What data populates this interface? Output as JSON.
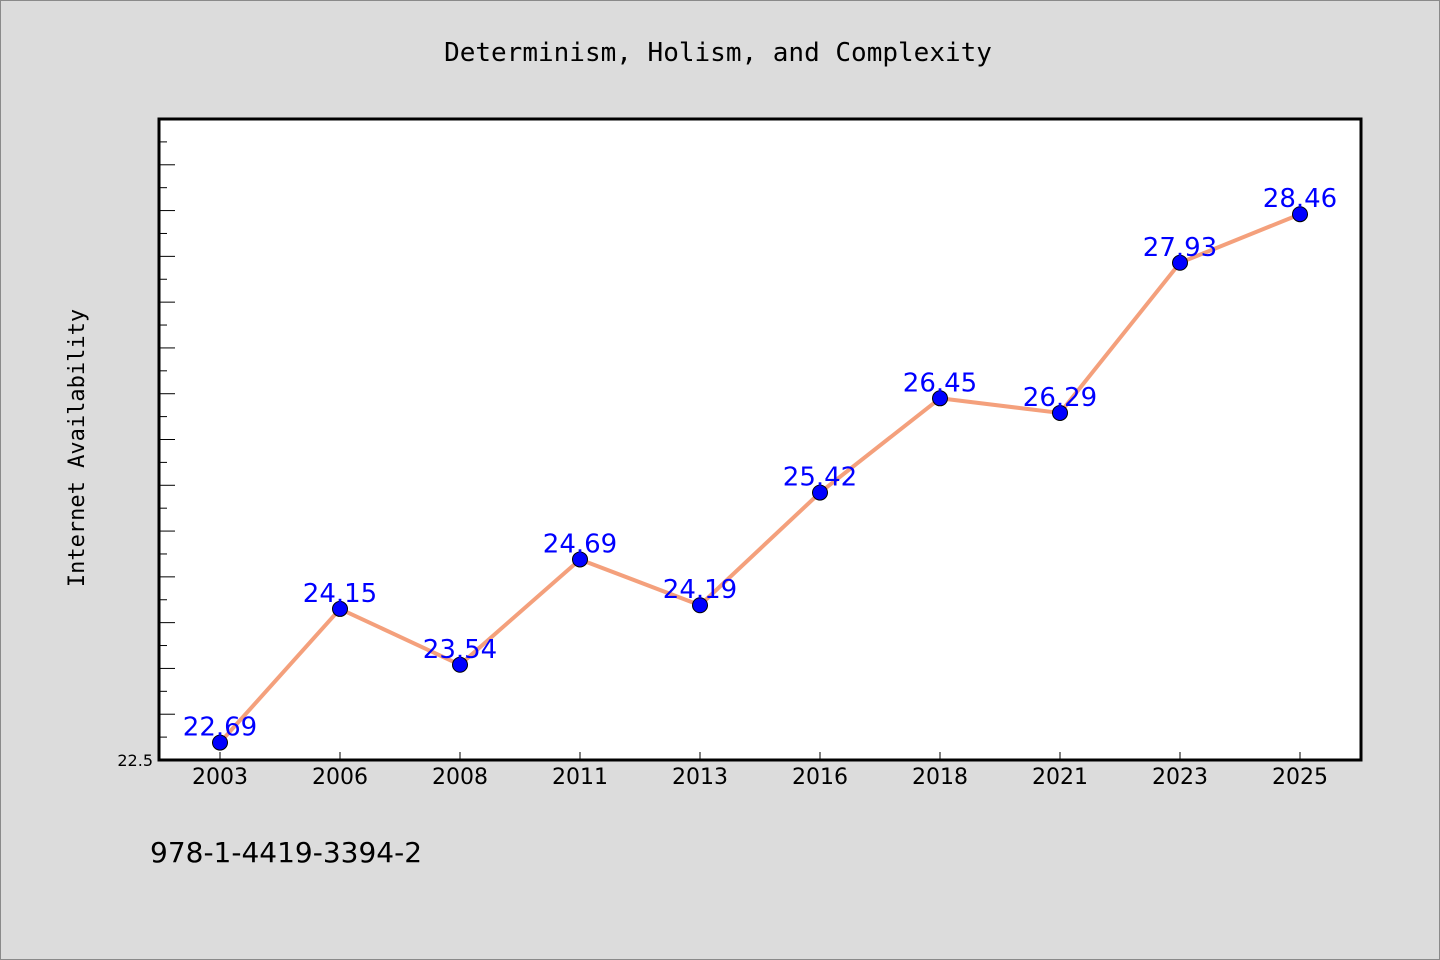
{
  "isbn_text": "978-1-4419-3394-2",
  "chart_data": {
    "type": "line",
    "title": "Determinism, Holism, and Complexity",
    "xlabel": "",
    "ylabel": "Internet Availability",
    "categories": [
      "2003",
      "2006",
      "2008",
      "2011",
      "2013",
      "2016",
      "2018",
      "2021",
      "2023",
      "2025"
    ],
    "series": [
      {
        "values": [
          22.69,
          24.15,
          23.54,
          24.69,
          24.19,
          25.42,
          26.45,
          26.29,
          27.93,
          28.46
        ]
      }
    ],
    "data_labels": [
      "22.69",
      "24.15",
      "23.54",
      "24.69",
      "24.19",
      "25.42",
      "26.45",
      "26.29",
      "27.93",
      "28.46"
    ],
    "ylim": [
      22.5,
      29.5
    ],
    "yticks_labeled": [
      "22.5"
    ],
    "grid": false,
    "line_color": "#f4a07c",
    "marker_color": "#0000ff",
    "label_color": "#0000ff",
    "background_color": "#dcdcdc",
    "plot_background": "#ffffff"
  }
}
